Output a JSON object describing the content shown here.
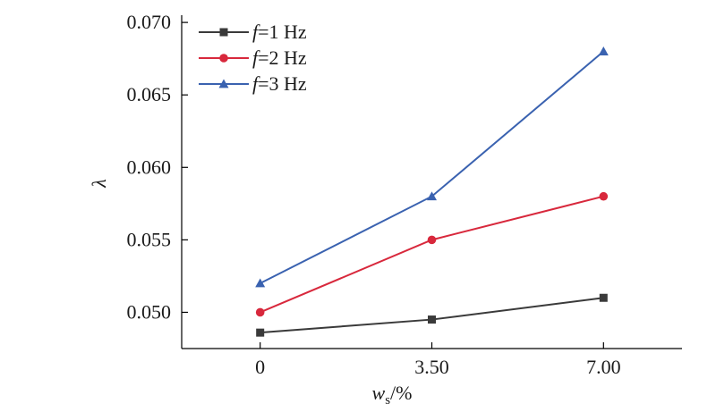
{
  "chart_data": {
    "type": "line",
    "xlabel": "ws/%",
    "xlabel_main": "w",
    "xlabel_sub": "s",
    "xlabel_unit": "/%",
    "ylabel": "λ",
    "x_categories": [
      "0",
      "3.50",
      "7.00"
    ],
    "x_values": [
      0,
      3.5,
      7.0
    ],
    "xlim": [
      -1.6,
      8.6
    ],
    "ylim": [
      0.0475,
      0.0705
    ],
    "y_ticks": [
      0.05,
      0.055,
      0.06,
      0.065,
      0.07
    ],
    "y_tick_labels": [
      "0.050",
      "0.055",
      "0.060",
      "0.065",
      "0.070"
    ],
    "grid": false,
    "legend_position": "top-left",
    "series": [
      {
        "name": "f=1 Hz",
        "legend_var": "f",
        "legend_rest": "=1 Hz",
        "color": "#3a3a3a",
        "marker": "square",
        "values": [
          0.0486,
          0.0495,
          0.051
        ]
      },
      {
        "name": "f=2 Hz",
        "legend_var": "f",
        "legend_rest": "=2 Hz",
        "color": "#d8283c",
        "marker": "circle",
        "values": [
          0.05,
          0.055,
          0.058
        ]
      },
      {
        "name": "f=3 Hz",
        "legend_var": "f",
        "legend_rest": "=3 Hz",
        "color": "#3a62b0",
        "marker": "triangle",
        "values": [
          0.052,
          0.058,
          0.068
        ]
      }
    ]
  }
}
